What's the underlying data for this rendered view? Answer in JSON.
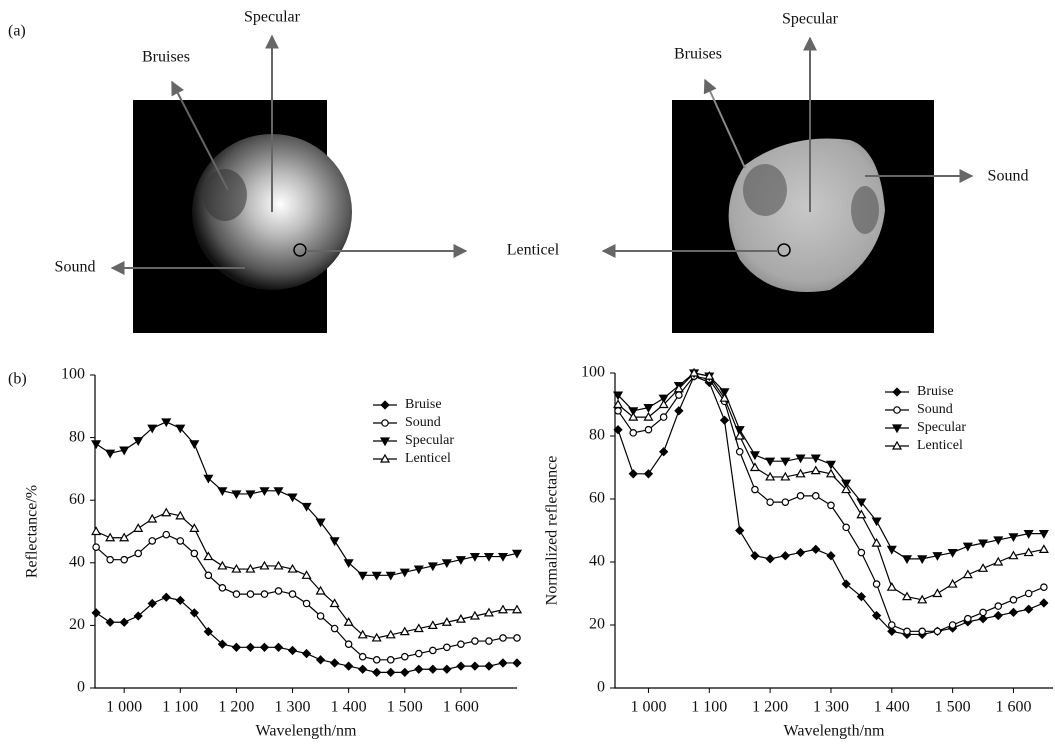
{
  "figure": {
    "panel_a": "(a)",
    "panel_b": "(b)",
    "left_image": {
      "specular": "Specular",
      "bruises": "Bruises",
      "sound": "Sound"
    },
    "center_label": "Lenticel",
    "right_image": {
      "specular": "Specular",
      "bruises": "Bruises",
      "sound": "Sound"
    }
  },
  "chart_data": [
    {
      "type": "line",
      "xlabel": "Wavelength/nm",
      "ylabel": "Reflectance/%",
      "x": [
        950,
        975,
        1000,
        1025,
        1050,
        1075,
        1100,
        1125,
        1150,
        1175,
        1200,
        1225,
        1250,
        1275,
        1300,
        1325,
        1350,
        1375,
        1400,
        1425,
        1450,
        1475,
        1500,
        1525,
        1550,
        1575,
        1600,
        1625,
        1650,
        1675,
        1700
      ],
      "xlim": [
        948,
        1700
      ],
      "ylim": [
        0,
        100
      ],
      "xticks": [
        {
          "value": 1000,
          "label": "1 000"
        },
        {
          "value": 1100,
          "label": "1 100"
        },
        {
          "value": 1200,
          "label": "1 200"
        },
        {
          "value": 1300,
          "label": "1 300"
        },
        {
          "value": 1400,
          "label": "1 400"
        },
        {
          "value": 1500,
          "label": "1 500"
        },
        {
          "value": 1600,
          "label": "1 600"
        }
      ],
      "yticks": [
        0,
        20,
        40,
        60,
        80,
        100
      ],
      "legend": "upper right",
      "series": [
        {
          "name": "Bruise",
          "color": "#000000",
          "marker": "diamond",
          "values": [
            24,
            21,
            21,
            23,
            27,
            29,
            28,
            24,
            18,
            14,
            13,
            13,
            13,
            13,
            12,
            11,
            9,
            8,
            7,
            6,
            5,
            5,
            5,
            6,
            6,
            6,
            7,
            7,
            7,
            8,
            8
          ]
        },
        {
          "name": "Sound",
          "color": "#000000",
          "marker": "circle-open",
          "values": [
            45,
            41,
            41,
            43,
            47,
            49,
            47,
            43,
            36,
            32,
            30,
            30,
            30,
            31,
            30,
            27,
            23,
            19,
            14,
            10,
            9,
            9,
            10,
            11,
            12,
            13,
            14,
            15,
            15,
            16,
            16
          ]
        },
        {
          "name": "Specular",
          "color": "#000000",
          "marker": "triangle-down",
          "values": [
            78,
            75,
            76,
            79,
            83,
            85,
            83,
            78,
            67,
            63,
            62,
            62,
            63,
            63,
            61,
            58,
            53,
            47,
            40,
            36,
            36,
            36,
            37,
            38,
            39,
            40,
            41,
            42,
            42,
            42,
            43
          ]
        },
        {
          "name": "Lenticel",
          "color": "#000000",
          "marker": "triangle-up-open",
          "values": [
            50,
            48,
            48,
            51,
            54,
            56,
            55,
            51,
            42,
            39,
            38,
            38,
            39,
            39,
            38,
            36,
            31,
            27,
            21,
            17,
            16,
            17,
            18,
            19,
            20,
            21,
            22,
            23,
            24,
            25,
            25
          ]
        }
      ]
    },
    {
      "type": "line",
      "xlabel": "Wavelength/nm",
      "ylabel": "Normalized reflectance",
      "x": [
        950,
        975,
        1000,
        1025,
        1050,
        1075,
        1100,
        1125,
        1150,
        1175,
        1200,
        1225,
        1250,
        1275,
        1300,
        1325,
        1350,
        1375,
        1400,
        1425,
        1450,
        1475,
        1500,
        1525,
        1550,
        1575,
        1600,
        1625,
        1650
      ],
      "xlim": [
        945,
        1665
      ],
      "ylim": [
        0,
        100
      ],
      "xticks": [
        {
          "value": 1000,
          "label": "1 000"
        },
        {
          "value": 1100,
          "label": "1 100"
        },
        {
          "value": 1200,
          "label": "1 200"
        },
        {
          "value": 1300,
          "label": "1 300"
        },
        {
          "value": 1400,
          "label": "1 400"
        },
        {
          "value": 1500,
          "label": "1 500"
        },
        {
          "value": 1600,
          "label": "1 600"
        }
      ],
      "yticks": [
        0,
        20,
        40,
        60,
        80,
        100
      ],
      "legend": "upper right",
      "series": [
        {
          "name": "Bruise",
          "color": "#000000",
          "marker": "diamond",
          "values": [
            82,
            68,
            68,
            75,
            88,
            99,
            97,
            85,
            50,
            42,
            41,
            42,
            43,
            44,
            42,
            33,
            29,
            23,
            18,
            17,
            17,
            18,
            19,
            21,
            22,
            23,
            24,
            25,
            27
          ]
        },
        {
          "name": "Sound",
          "color": "#000000",
          "marker": "circle-open",
          "values": [
            88,
            81,
            82,
            86,
            93,
            99,
            98,
            91,
            75,
            63,
            59,
            59,
            61,
            61,
            58,
            51,
            43,
            33,
            20,
            18,
            18,
            18,
            20,
            22,
            24,
            26,
            28,
            30,
            32
          ]
        },
        {
          "name": "Specular",
          "color": "#000000",
          "marker": "triangle-down",
          "values": [
            93,
            88,
            89,
            92,
            96,
            100,
            99,
            94,
            82,
            74,
            72,
            72,
            73,
            73,
            71,
            65,
            59,
            53,
            44,
            41,
            41,
            42,
            43,
            45,
            46,
            47,
            48,
            49,
            49
          ]
        },
        {
          "name": "Lenticel",
          "color": "#000000",
          "marker": "triangle-up-open",
          "values": [
            90,
            86,
            86,
            90,
            95,
            100,
            99,
            92,
            80,
            70,
            67,
            67,
            68,
            69,
            68,
            63,
            55,
            46,
            32,
            29,
            28,
            30,
            33,
            36,
            38,
            40,
            42,
            43,
            44
          ]
        }
      ]
    }
  ]
}
